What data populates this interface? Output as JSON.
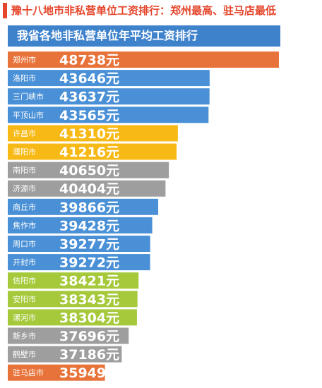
{
  "headline": "豫十八地市非私营单位工资排行：郑州最高、驻马店最低",
  "chart_data": {
    "type": "bar",
    "orientation": "horizontal",
    "title": "我省各地非私营单位年平均工资排行",
    "unit": "元",
    "categories": [
      "郑州市",
      "洛阳市",
      "三门峡市",
      "平顶山市",
      "许昌市",
      "濮阳市",
      "南阳市",
      "济源市",
      "商丘市",
      "焦作市",
      "周口市",
      "开封市",
      "信阳市",
      "安阳市",
      "漯河市",
      "新乡市",
      "鹤壁市",
      "驻马店市"
    ],
    "values": [
      48738,
      43646,
      43637,
      43565,
      41310,
      41216,
      40650,
      40404,
      39866,
      39428,
      39277,
      39272,
      38421,
      38343,
      38304,
      37696,
      37186,
      35949
    ],
    "colors": [
      "#e8733a",
      "#4a90d6",
      "#4a90d6",
      "#4a90d6",
      "#f7b915",
      "#f7b915",
      "#9e9e9e",
      "#9e9e9e",
      "#4a90d6",
      "#4a90d6",
      "#4a90d6",
      "#4a90d6",
      "#a5c93a",
      "#a5c93a",
      "#a5c93a",
      "#9e9e9e",
      "#9e9e9e",
      "#e8733a"
    ]
  }
}
